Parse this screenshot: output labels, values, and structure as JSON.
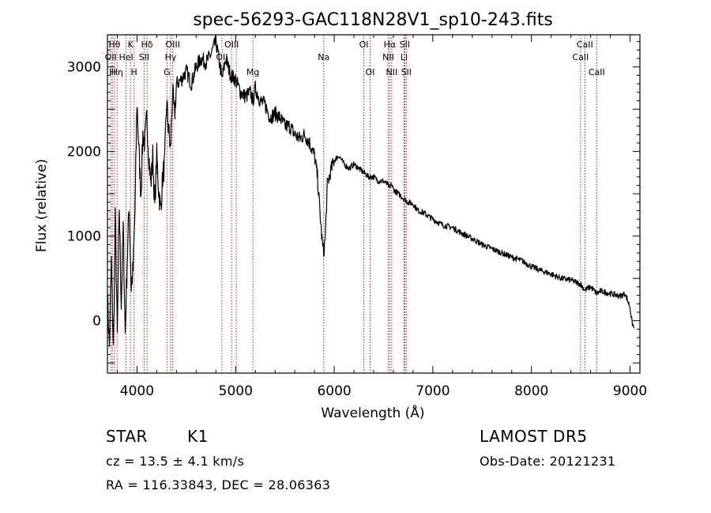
{
  "chart_data": {
    "type": "line",
    "title": "spec-56293-GAC118N28V1_sp10-243.fits",
    "xlabel": "Wavelength (Å)",
    "ylabel": "Flux (relative)",
    "xlim": [
      3700,
      9100
    ],
    "ylim": [
      -620,
      3380
    ],
    "xticks": [
      4000,
      5000,
      6000,
      7000,
      8000,
      9000
    ],
    "yticks": [
      0,
      1000,
      2000,
      3000
    ],
    "grid": false,
    "series": [
      {
        "color": "#000000",
        "x": [
          3700,
          3720,
          3740,
          3760,
          3780,
          3800,
          3820,
          3840,
          3860,
          3880,
          3900,
          3920,
          3940,
          3960,
          3980,
          4000,
          4020,
          4040,
          4060,
          4080,
          4100,
          4120,
          4140,
          4160,
          4180,
          4200,
          4220,
          4240,
          4260,
          4280,
          4300,
          4320,
          4340,
          4360,
          4380,
          4400,
          4450,
          4500,
          4550,
          4600,
          4650,
          4700,
          4750,
          4800,
          4850,
          4861,
          4900,
          4950,
          5000,
          5050,
          5100,
          5150,
          5175,
          5200,
          5250,
          5300,
          5350,
          5400,
          5450,
          5500,
          5550,
          5600,
          5650,
          5700,
          5750,
          5800,
          5830,
          5860,
          5880,
          5893,
          5910,
          5930,
          5960,
          6000,
          6050,
          6100,
          6150,
          6200,
          6250,
          6300,
          6350,
          6400,
          6450,
          6500,
          6550,
          6563,
          6580,
          6600,
          6650,
          6700,
          6750,
          6800,
          6850,
          6900,
          6950,
          7000,
          7100,
          7200,
          7300,
          7400,
          7500,
          7600,
          7700,
          7800,
          7900,
          8000,
          8100,
          8200,
          8300,
          8400,
          8500,
          8542,
          8600,
          8662,
          8700,
          8800,
          8900,
          8950,
          9000,
          9020,
          9040
        ],
        "y": [
          300,
          -300,
          700,
          -350,
          1200,
          -200,
          1350,
          200,
          1100,
          -150,
          700,
          1400,
          400,
          600,
          1300,
          2600,
          2000,
          1500,
          2200,
          2100,
          2400,
          1950,
          1600,
          1950,
          1350,
          1950,
          1550,
          1300,
          1700,
          1850,
          2600,
          2250,
          2000,
          2700,
          2400,
          2800,
          2850,
          2950,
          2800,
          3000,
          3100,
          3050,
          3150,
          3300,
          2950,
          2850,
          3100,
          2900,
          2850,
          2700,
          2650,
          2700,
          2600,
          2750,
          2600,
          2550,
          2400,
          2450,
          2400,
          2300,
          2300,
          2200,
          2150,
          2200,
          2100,
          1950,
          1700,
          1200,
          900,
          800,
          1000,
          1600,
          1750,
          1900,
          1950,
          1850,
          1800,
          1850,
          1800,
          1750,
          1700,
          1700,
          1650,
          1650,
          1600,
          1550,
          1620,
          1550,
          1500,
          1450,
          1400,
          1380,
          1300,
          1280,
          1240,
          1200,
          1130,
          1100,
          1030,
          970,
          900,
          850,
          800,
          750,
          710,
          640,
          590,
          550,
          500,
          480,
          430,
          360,
          400,
          320,
          350,
          320,
          290,
          320,
          160,
          -20,
          -90
        ]
      }
    ],
    "line_markers": [
      {
        "wl": 3734,
        "row": 1,
        "label": "OII"
      },
      {
        "wl": 3750,
        "row": 2,
        "label": "H"
      },
      {
        "wl": 3771,
        "row": 0,
        "label": "Hθ"
      },
      {
        "wl": 3798,
        "row": 2,
        "label": "Hη"
      },
      {
        "wl": 3889,
        "row": 1,
        "label": "HeI"
      },
      {
        "wl": 3934,
        "row": 0,
        "label": "K"
      },
      {
        "wl": 3970,
        "row": 2,
        "label": "H"
      },
      {
        "wl": 4072,
        "row": 1,
        "label": "SII"
      },
      {
        "wl": 4102,
        "row": 0,
        "label": "Hδ"
      },
      {
        "wl": 4304,
        "row": 2,
        "label": "G"
      },
      {
        "wl": 4341,
        "row": 1,
        "label": "Hγ"
      },
      {
        "wl": 4363,
        "row": 0,
        "label": "OIII"
      },
      {
        "wl": 4861,
        "row": 1,
        "label": "OII"
      },
      {
        "wl": 4959,
        "row": 0,
        "label": "OIII"
      },
      {
        "wl": 5007,
        "row": 1,
        "label": ""
      },
      {
        "wl": 5175,
        "row": 2,
        "label": "Mg"
      },
      {
        "wl": 5893,
        "row": 1,
        "label": "Na"
      },
      {
        "wl": 6300,
        "row": 0,
        "label": "OI"
      },
      {
        "wl": 6364,
        "row": 2,
        "label": "OI"
      },
      {
        "wl": 6548,
        "row": 1,
        "label": "NII"
      },
      {
        "wl": 6563,
        "row": 0,
        "label": "Hα"
      },
      {
        "wl": 6583,
        "row": 2,
        "label": "NII"
      },
      {
        "wl": 6708,
        "row": 1,
        "label": "Li"
      },
      {
        "wl": 6716,
        "row": 0,
        "label": "SII"
      },
      {
        "wl": 6731,
        "row": 2,
        "label": "SII"
      },
      {
        "wl": 8498,
        "row": 1,
        "label": "CaII"
      },
      {
        "wl": 8542,
        "row": 0,
        "label": "CaII"
      },
      {
        "wl": 8662,
        "row": 2,
        "label": "CaII"
      }
    ]
  },
  "info": {
    "class": "STAR",
    "subclass": "K1",
    "survey": "LAMOST  DR5",
    "cz": "cz = 13.5 ± 4.1 km/s",
    "obs_date": "Obs-Date: 20121231",
    "coords": "RA = 116.33843, DEC =  28.06363"
  }
}
